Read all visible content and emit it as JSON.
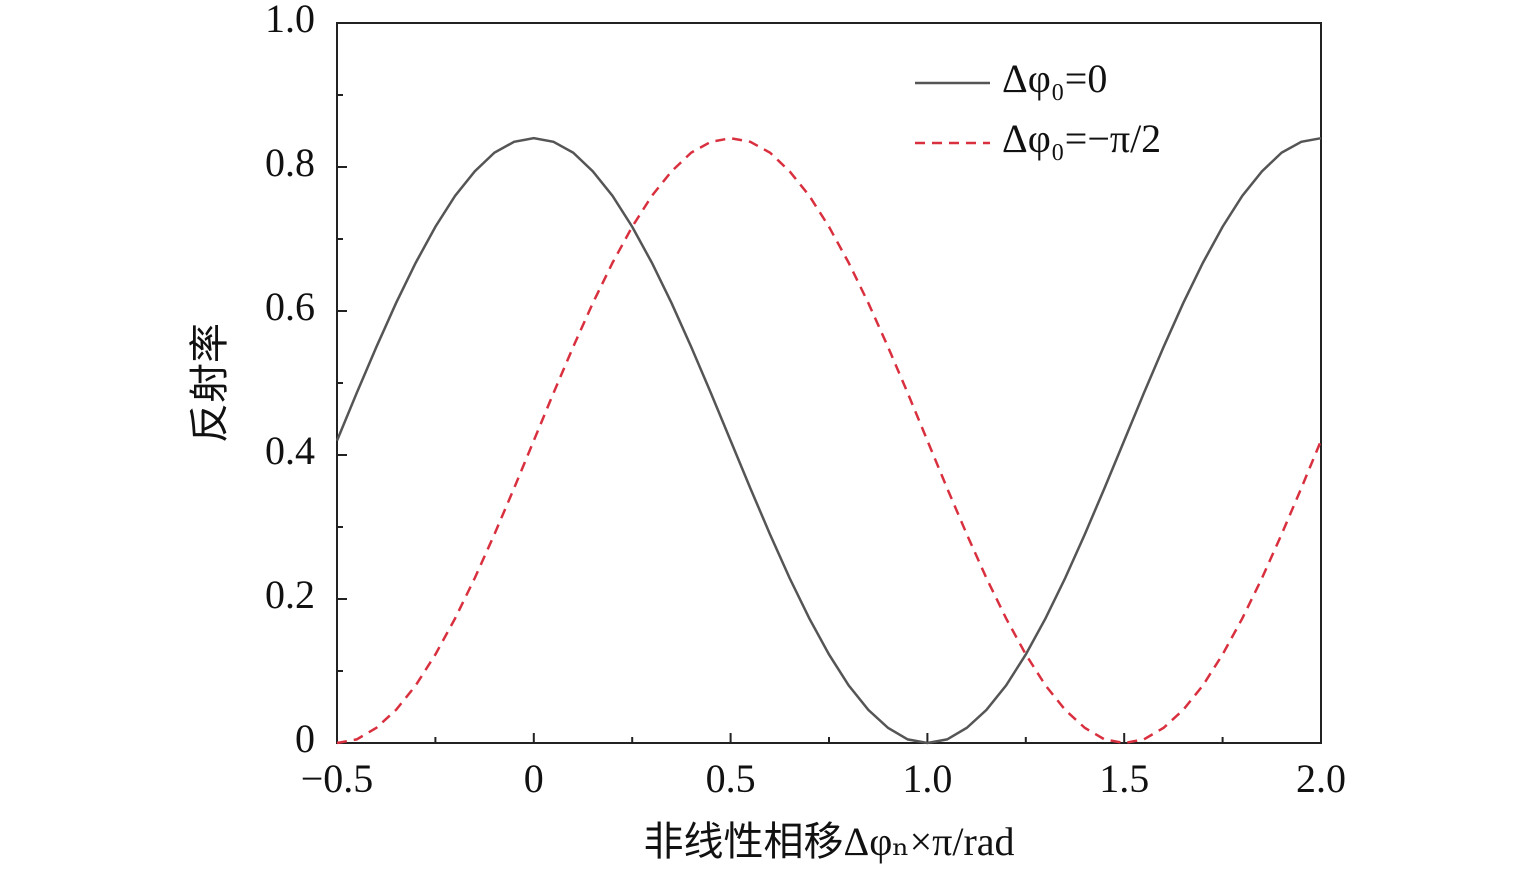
{
  "chart_data": {
    "type": "line",
    "xlabel": "非线性相移Δφₙ×π/rad",
    "ylabel": "反射率",
    "x": [
      -0.5,
      -0.45,
      -0.4,
      -0.35,
      -0.3,
      -0.25,
      -0.2,
      -0.15,
      -0.1,
      -0.05,
      0,
      0.05,
      0.1,
      0.15,
      0.2,
      0.25,
      0.3,
      0.35,
      0.4,
      0.45,
      0.5,
      0.55,
      0.6,
      0.65,
      0.7,
      0.75,
      0.8,
      0.85,
      0.9,
      0.95,
      1.0,
      1.05,
      1.1,
      1.15,
      1.2,
      1.25,
      1.3,
      1.35,
      1.4,
      1.45,
      1.5,
      1.55,
      1.6,
      1.65,
      1.7,
      1.75,
      1.8,
      1.85,
      1.9,
      1.95,
      2.0
    ],
    "series": [
      {
        "name": "Δφ₀=0",
        "color": "#555555",
        "dash": false,
        "values": [
          0.42,
          0.486,
          0.55,
          0.611,
          0.667,
          0.717,
          0.76,
          0.794,
          0.82,
          0.835,
          0.84,
          0.835,
          0.82,
          0.794,
          0.76,
          0.717,
          0.667,
          0.611,
          0.55,
          0.486,
          0.42,
          0.354,
          0.29,
          0.229,
          0.173,
          0.123,
          0.08,
          0.046,
          0.021,
          0.005,
          0,
          0.005,
          0.021,
          0.046,
          0.08,
          0.123,
          0.173,
          0.229,
          0.29,
          0.354,
          0.42,
          0.486,
          0.55,
          0.611,
          0.667,
          0.717,
          0.76,
          0.794,
          0.82,
          0.835,
          0.84
        ]
      },
      {
        "name": "Δφ₀=−π/2",
        "color": "#d9303f",
        "dash": true,
        "values": [
          0,
          0.005,
          0.021,
          0.046,
          0.08,
          0.123,
          0.173,
          0.229,
          0.29,
          0.354,
          0.42,
          0.486,
          0.55,
          0.611,
          0.667,
          0.717,
          0.76,
          0.794,
          0.82,
          0.835,
          0.84,
          0.835,
          0.82,
          0.794,
          0.76,
          0.717,
          0.667,
          0.611,
          0.55,
          0.486,
          0.42,
          0.354,
          0.29,
          0.229,
          0.173,
          0.123,
          0.08,
          0.046,
          0.021,
          0.005,
          0,
          0.005,
          0.021,
          0.046,
          0.08,
          0.123,
          0.173,
          0.229,
          0.29,
          0.354,
          0.42
        ]
      }
    ],
    "xlim": [
      -0.5,
      2.0
    ],
    "ylim": [
      0,
      1.0
    ],
    "xticks": [
      {
        "value": -0.5,
        "label": "−0.5"
      },
      0,
      0.5,
      {
        "value": 1.0,
        "label": "1.0"
      },
      1.5,
      {
        "value": 2.0,
        "label": "2.0"
      }
    ],
    "yticks": [
      0,
      0.2,
      0.4,
      0.6,
      0.8,
      {
        "value": 1.0,
        "label": "1.0"
      }
    ],
    "xminorticks": [
      -0.25,
      0.25,
      0.75,
      1.25,
      1.75
    ],
    "yminorticks": [
      0.1,
      0.3,
      0.5,
      0.7,
      0.9
    ],
    "legend": "upper right",
    "grid": false
  }
}
